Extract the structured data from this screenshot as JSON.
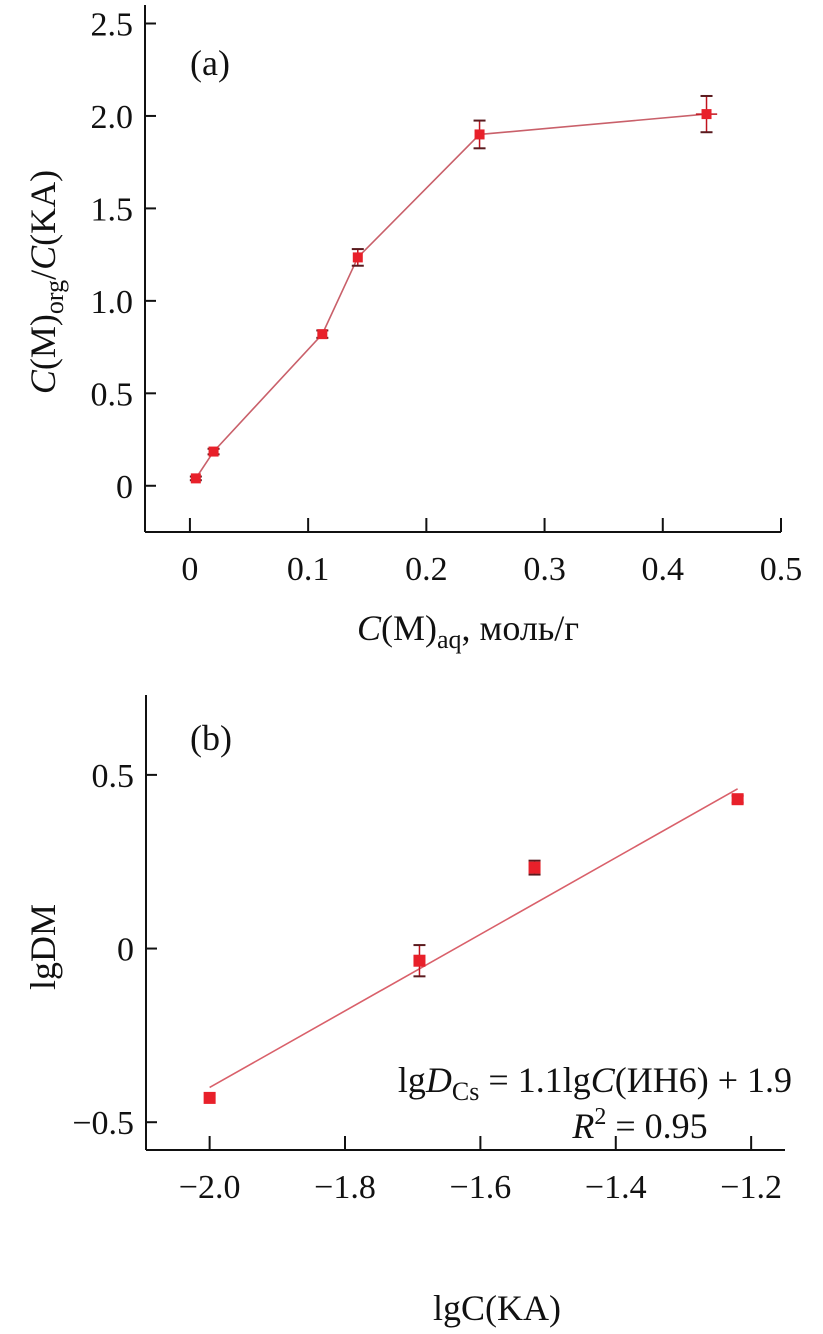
{
  "chart_data": [
    {
      "type": "line",
      "panel_label": "(a)",
      "xlabel": "C(M)aq, моль/г",
      "xlabel_parts": {
        "main": "C",
        "mid": "(M)",
        "sub": "aq",
        "tail": ", моль/г"
      },
      "ylabel": "C(M)org/C(KA)",
      "ylabel_parts": {
        "c1": "C",
        "m": "(M)",
        "sub": "org",
        "slash": "/",
        "c2": "C",
        "ka": "(KA)"
      },
      "xlim": [
        -0.038,
        0.5
      ],
      "ylim": [
        -0.25,
        2.6
      ],
      "xticks": [
        0,
        0.1,
        0.2,
        0.3,
        0.4,
        0.5
      ],
      "xtick_labels": [
        "0",
        "0.1",
        "0.2",
        "0.3",
        "0.4",
        "0.5"
      ],
      "yticks": [
        0,
        0.5,
        1.0,
        1.5,
        2.0,
        2.5
      ],
      "ytick_labels": [
        "0",
        "0.5",
        "1.0",
        "1.5",
        "2.0",
        "2.5"
      ],
      "series": [
        {
          "name": "data",
          "color": "#e8202a",
          "x": [
            0.005,
            0.02,
            0.112,
            0.142,
            0.245,
            0.437
          ],
          "y": [
            0.04,
            0.185,
            0.82,
            1.235,
            1.9,
            2.01
          ],
          "yerr": [
            0.01,
            0.015,
            0.02,
            0.045,
            0.075,
            0.098
          ],
          "xerr": [
            0,
            0,
            0,
            0,
            0.003,
            0.009
          ]
        }
      ]
    },
    {
      "type": "scatter",
      "panel_label": "(b)",
      "xlabel": "lgC(KA)",
      "xlabel_parts": {
        "lg": "lg",
        "c": "C",
        "ka": "(KA)"
      },
      "ylabel": "lgDM",
      "ylabel_parts": {
        "lg": "lg",
        "d": "D",
        "sub": "M"
      },
      "xlim": [
        -2.094,
        -1.15
      ],
      "ylim": [
        -0.58,
        0.73
      ],
      "xticks": [
        -2.0,
        -1.8,
        -1.6,
        -1.4,
        -1.2
      ],
      "xtick_labels": [
        "−2.0",
        "−1.8",
        "−1.6",
        "−1.4",
        "−1.2"
      ],
      "yticks": [
        0.5,
        0,
        -0.5
      ],
      "ytick_labels": [
        "0.5",
        "0",
        "−0.5"
      ],
      "series": [
        {
          "name": "data",
          "color": "#e8202a",
          "x": [
            -2.0,
            -1.69,
            -1.52,
            -1.22
          ],
          "y": [
            -0.43,
            -0.035,
            0.233,
            0.43
          ],
          "yerr": [
            0,
            0.045,
            0.02,
            0.01
          ]
        }
      ],
      "fit": {
        "x": [
          -2.0,
          -1.22
        ],
        "y": [
          -0.4,
          0.46
        ],
        "color": "#d9606a"
      },
      "annotation": {
        "eq_lg": "lg",
        "eq_d": "D",
        "eq_sub": "Cs",
        "eq_rest1": " = 1.1lg",
        "eq_c": "C",
        "eq_rest2": "(ИН6) + 1.9",
        "r_r": "R",
        "r_sup": "2",
        "r_rest": " = 0.95"
      }
    }
  ]
}
